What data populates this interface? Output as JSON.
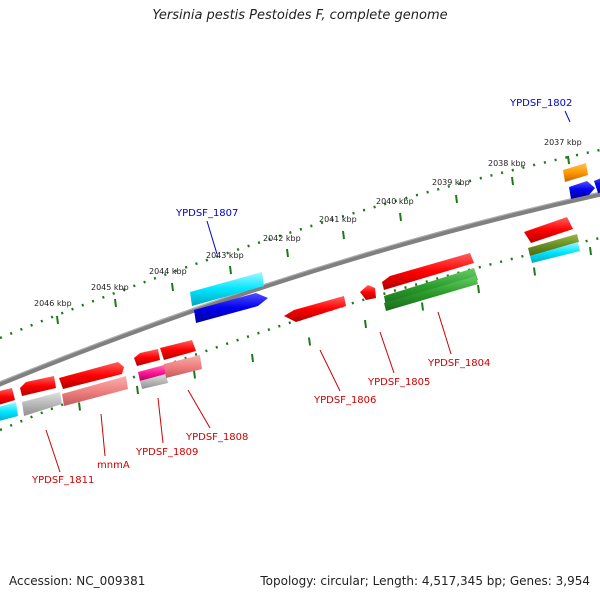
{
  "title": "Yersinia pestis Pestoides F, complete genome",
  "footer": {
    "accession": "Accession: NC_009381",
    "stats": "Topology: circular; Length: 4,517,345 bp; Genes: 3,954"
  },
  "colors": {
    "backbone": "#808080",
    "tick": "#1a7a1a",
    "forward_cds": "#ff0000",
    "reverse_cds": "#2a9a2a",
    "blue_feature": "#0000ee",
    "cyan_feature": "#00e5ff",
    "orange_feature": "#ff9900",
    "pink_feature": "#f08080",
    "gray_feature": "#b0b0b0",
    "magenta_feature": "#ff1493",
    "olive_feature": "#6b8e23",
    "label_red": "#cc0000",
    "label_blue": "#0000cc"
  },
  "scale": {
    "unit": "kbp",
    "ticks": [
      {
        "label": "2037 kbp"
      },
      {
        "label": "2038 kbp"
      },
      {
        "label": "2039 kbp"
      },
      {
        "label": "2040 kbp"
      },
      {
        "label": "2041 kbp"
      },
      {
        "label": "2042 kbp"
      },
      {
        "label": "2043 kbp"
      },
      {
        "label": "2044 kbp"
      },
      {
        "label": "2045 kbp"
      },
      {
        "label": "2046 kbp"
      }
    ]
  },
  "gene_labels": [
    {
      "text": "YPDSF_1802",
      "color": "blue"
    },
    {
      "text": "YPDSF_1807",
      "color": "blue"
    },
    {
      "text": "YPDSF_1804",
      "color": "red"
    },
    {
      "text": "YPDSF_1805",
      "color": "red"
    },
    {
      "text": "YPDSF_1806",
      "color": "red"
    },
    {
      "text": "YPDSF_1808",
      "color": "red"
    },
    {
      "text": "YPDSF_1809",
      "color": "red"
    },
    {
      "text": "mnmA",
      "color": "red"
    },
    {
      "text": "YPDSF_1811",
      "color": "red"
    }
  ]
}
